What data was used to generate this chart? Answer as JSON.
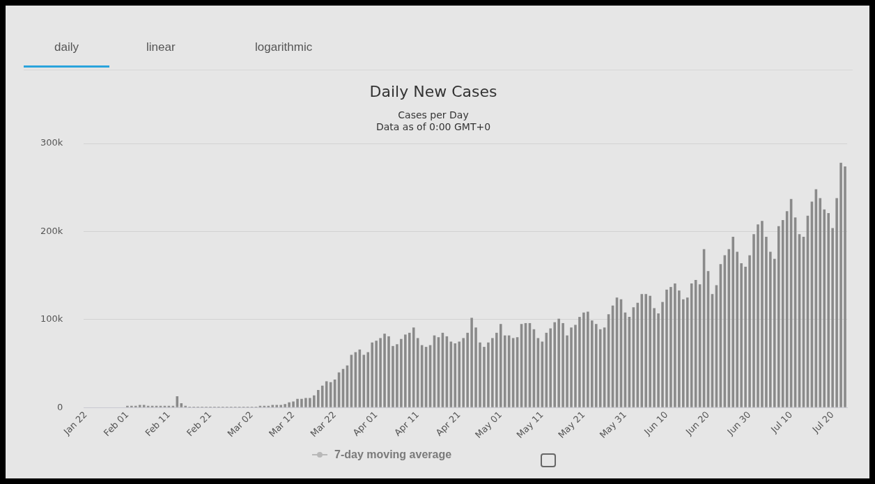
{
  "chart_data": {
    "type": "bar",
    "title": "Daily New Cases",
    "subtitle": "Cases per Day\nData as of 0:00 GMT+0",
    "categories": [
      "Jan 22",
      null,
      null,
      null,
      null,
      null,
      null,
      null,
      null,
      null,
      "Feb 01",
      null,
      null,
      null,
      null,
      null,
      null,
      null,
      null,
      null,
      "Feb 11",
      null,
      null,
      null,
      null,
      null,
      null,
      null,
      null,
      null,
      "Feb 21",
      null,
      null,
      null,
      null,
      null,
      null,
      null,
      null,
      null,
      "Mar 02",
      null,
      null,
      null,
      null,
      null,
      null,
      null,
      null,
      null,
      "Mar 12",
      null,
      null,
      null,
      null,
      null,
      null,
      null,
      null,
      null,
      "Mar 22",
      null,
      null,
      null,
      null,
      null,
      null,
      null,
      null,
      null,
      "Apr 01",
      null,
      null,
      null,
      null,
      null,
      null,
      null,
      null,
      null,
      "Apr 11",
      null,
      null,
      null,
      null,
      null,
      null,
      null,
      null,
      null,
      "Apr 21",
      null,
      null,
      null,
      null,
      null,
      null,
      null,
      null,
      null,
      "May 01",
      null,
      null,
      null,
      null,
      null,
      null,
      null,
      null,
      null,
      "May 11",
      null,
      null,
      null,
      null,
      null,
      null,
      null,
      null,
      null,
      "May 21",
      null,
      null,
      null,
      null,
      null,
      null,
      null,
      null,
      null,
      "May 31",
      null,
      null,
      null,
      null,
      null,
      null,
      null,
      null,
      null,
      "Jun 10",
      null,
      null,
      null,
      null,
      null,
      null,
      null,
      null,
      null,
      "Jun 20",
      null,
      null,
      null,
      null,
      null,
      null,
      null,
      null,
      null,
      "Jun 30",
      null,
      null,
      null,
      null,
      null,
      null,
      null,
      null,
      null,
      "Jul 10",
      null,
      null,
      null,
      null,
      null,
      null,
      null,
      null,
      null,
      "Jul 20",
      null,
      null,
      null
    ],
    "values": [
      0,
      0,
      0,
      0,
      0,
      0,
      0,
      0,
      0,
      0,
      2000,
      2000,
      2000,
      3000,
      3000,
      2000,
      2000,
      2000,
      2000,
      2000,
      2000,
      2000,
      13000,
      5000,
      2000,
      1000,
      1000,
      1000,
      1000,
      1000,
      1000,
      1000,
      1000,
      1000,
      1000,
      1000,
      1000,
      1000,
      1000,
      1000,
      1000,
      1000,
      2000,
      2000,
      2000,
      3000,
      3000,
      3000,
      4000,
      6000,
      7000,
      10000,
      10000,
      11000,
      11000,
      14000,
      20000,
      25000,
      30000,
      29000,
      32000,
      40000,
      44000,
      48000,
      60000,
      63000,
      66000,
      60000,
      63000,
      74000,
      76000,
      79000,
      84000,
      81000,
      70000,
      72000,
      78000,
      83000,
      85000,
      91000,
      79000,
      71000,
      69000,
      71000,
      82000,
      80000,
      85000,
      81000,
      75000,
      73000,
      75000,
      79000,
      85000,
      102000,
      91000,
      74000,
      69000,
      74000,
      79000,
      85000,
      95000,
      82000,
      82000,
      79000,
      80000,
      95000,
      96000,
      96000,
      89000,
      79000,
      75000,
      85000,
      90000,
      97000,
      101000,
      96000,
      82000,
      91000,
      94000,
      103000,
      108000,
      109000,
      99000,
      95000,
      89000,
      91000,
      106000,
      116000,
      125000,
      123000,
      108000,
      103000,
      114000,
      119000,
      129000,
      129000,
      127000,
      113000,
      107000,
      120000,
      134000,
      137000,
      141000,
      133000,
      123000,
      125000,
      141000,
      145000,
      140000,
      180000,
      155000,
      129000,
      139000,
      163000,
      173000,
      180000,
      194000,
      177000,
      164000,
      160000,
      173000,
      197000,
      208000,
      212000,
      194000,
      177000,
      169000,
      206000,
      213000,
      223000,
      237000,
      216000,
      197000,
      194000,
      218000,
      234000,
      248000,
      238000,
      225000,
      221000,
      204000,
      238000,
      278000,
      274000
    ],
    "color": "#8a8a8a",
    "ylim": [
      0,
      300000
    ],
    "yticks": [
      0,
      {
        "value": 100000,
        "label": "100k"
      },
      {
        "value": 200000,
        "label": "200k"
      },
      {
        "value": 300000,
        "label": "300k"
      }
    ],
    "grid": "y",
    "annotations": [
      "daily",
      "linear",
      "logarithmic",
      "7-day moving average"
    ]
  }
}
